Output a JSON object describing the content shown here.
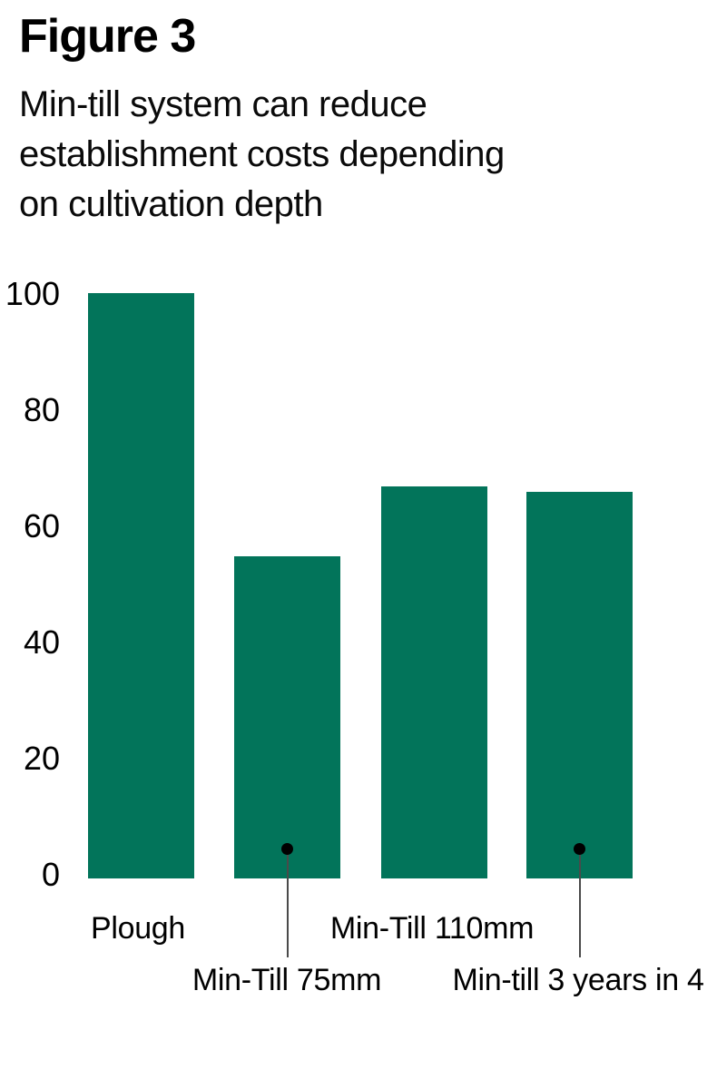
{
  "header": {
    "title": "Figure 3",
    "subtitle_lines": [
      "Min-till system can reduce",
      "establishment costs depending",
      "on cultivation depth"
    ]
  },
  "chart_data": {
    "type": "bar",
    "title": "Figure 3",
    "subtitle": "Min-till system can reduce establishment costs depending on cultivation depth",
    "categories": [
      "Plough",
      "Min-Till 75mm",
      "Min-Till 110mm",
      "Min-till 3 years in 4"
    ],
    "values": [
      100,
      55,
      67,
      66
    ],
    "yticks": [
      "100",
      "80",
      "60",
      "40",
      "20",
      "0"
    ],
    "ylim": [
      0,
      100
    ],
    "xlabel": "",
    "ylabel": "",
    "grid": false,
    "legend": false,
    "bar_color": "#02745a",
    "annotation_dot_color": "#000000",
    "annotations": [
      {
        "category": "Min-Till 75mm",
        "marker": "dot-with-leader-line"
      },
      {
        "category": "Min-till 3 years in 4",
        "marker": "dot-with-leader-line"
      }
    ]
  }
}
